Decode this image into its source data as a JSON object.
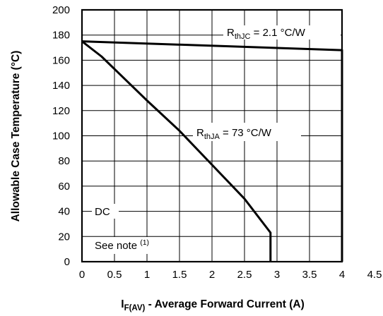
{
  "chart_data": {
    "type": "line",
    "xlabel": {
      "main": "I",
      "sub": "F(AV)",
      "rest": " - Average Forward Current (A)"
    },
    "ylabel": "Allowable Case Temperature (°C)",
    "xlim": [
      0,
      4.5
    ],
    "ylim": [
      0,
      200
    ],
    "xticks": [
      "0",
      "0.5",
      "1",
      "1.5",
      "2",
      "2.5",
      "3",
      "3.5",
      "4",
      "4.5"
    ],
    "yticks": [
      "0",
      "20",
      "40",
      "60",
      "80",
      "100",
      "120",
      "140",
      "160",
      "180",
      "200"
    ],
    "grid": true,
    "series": [
      {
        "label": {
          "main": "R",
          "sub": "thJC",
          "rest": " = 2.1 °C/W"
        },
        "points": [
          [
            0,
            175
          ],
          [
            4.0,
            168
          ],
          [
            4.0,
            0
          ]
        ]
      },
      {
        "label": {
          "main": "R",
          "sub": "thJA",
          "rest": " = 73 °C/W"
        },
        "points": [
          [
            0,
            175
          ],
          [
            0.3,
            163
          ],
          [
            0.7,
            143
          ],
          [
            1.0,
            128
          ],
          [
            1.5,
            104
          ],
          [
            2.0,
            77
          ],
          [
            2.5,
            50
          ],
          [
            2.9,
            23
          ],
          [
            2.9,
            0
          ]
        ]
      }
    ],
    "annotations": {
      "dc": "DC",
      "note": {
        "main": "See note ",
        "sup": "(1)"
      }
    }
  }
}
